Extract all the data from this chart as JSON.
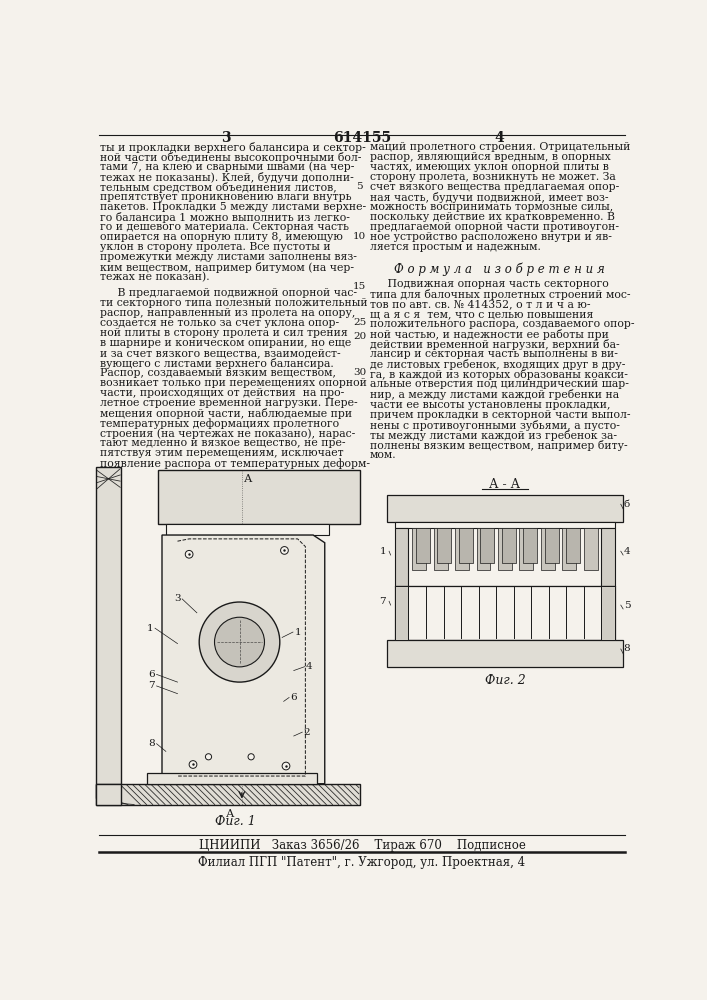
{
  "page_bg": "#f5f2ec",
  "text_color": "#1a1a1a",
  "header_number_left": "3",
  "header_center": "614155",
  "header_number_right": "4",
  "left_col_para1": [
    "ты и прокладки верхнего балансира и сектор-",
    "ной части объединены высокопрочными бол-",
    "тами 7, на клею и сварными швами (на чер-",
    "тежах не показаны). Клей, будучи дополни-",
    "тельным средством объединения листов,",
    "препятствует проникновению влаги внутрь",
    "пакетов. Прокладки 5 между листами верхне-",
    "го балансира 1 можно выполнить из легко-",
    "го и дешевого материала. Секторная часть",
    "опирается на опорную плиту 8, имеющую",
    "уклон в сторону пролета. Все пустоты и",
    "промежутки между листами заполнены вяз-",
    "ким веществом, например битумом (на чер-",
    "тежах не показан)."
  ],
  "left_col_para2": [
    "     В предлагаемой подвижной опорной час-",
    "ти секторного типа полезный положительный",
    "распор, направленный из пролета на опору,",
    "создается не только за счет уклона опор-",
    "ной плиты в сторону пролета и сил трения",
    "в шарнире и коническом опирании, но еще",
    "и за счет вязкого вещества, взаимодейст-",
    "вующего с листами верхнего балансира.",
    "Распор, создаваемый вязким веществом,",
    "возникает только при перемещениях опорной",
    "части, происходящих от действия  на про-",
    "летное строение временной нагрузки. Пере-",
    "мещения опорной части, наблюдаемые при",
    "температурных деформациях пролетного",
    "строения (на чертежах не показано), нарас-",
    "тают медленно и вязкое вещество, не пре-",
    "пятствуя этим перемещениям, исключает",
    "появление распора от температурных деформ-"
  ],
  "right_col_para1": [
    "маций пролетного строения. Отрицательный",
    "распор, являющийся вредным, в опорных",
    "частях, имеющих уклон опорной плиты в",
    "сторону пролета, возникнуть не может. За",
    "счет вязкого вещества предлагаемая опор-",
    "ная часть, будучи подвижной, имеет воз-",
    "можность воспринимать тормозные силы,",
    "поскольку действие их кратковременно. В",
    "предлагаемой опорной части противоугон-",
    "ное устройство расположено внутри и яв-",
    "ляется простым и надежным."
  ],
  "formula_title": "Ф о р м у л а   и з о б р е т е н и я",
  "formula_text": [
    "     Подвижная опорная часть секторного",
    "типа для балочных пролетных строений мос-",
    "тов по авт. св. № 414352, о т л и ч а ю-",
    "щ а я с я  тем, что с целью повышения",
    "положительного распора, создаваемого опор-",
    "ной частью, и надежности ее работы при",
    "действии временной нагрузки, верхний ба-",
    "лансир и секторная часть выполнены в ви-",
    "де листовых гребенок, входящих друг в дру-",
    "га, в каждой из которых образованы коакси-",
    "альные отверстия под цилиндрический шар-",
    "нир, а между листами каждой гребенки на",
    "части ее высоты установлены прокладки,",
    "причем прокладки в секторной части выпол-",
    "нены с противоугонными зубьями, а пусто-",
    "ты между листами каждой из гребенок за-",
    "полнены вязким веществом, например биту-",
    "мом."
  ],
  "line_numbers": [
    "5",
    "10",
    "15",
    "20",
    "25",
    "30"
  ],
  "fig1_caption": "Фиг. 1",
  "fig2_caption": "Фиг. 2",
  "section_label": "А - А",
  "footer_line1": "ЦНИИПИ   Заказ 3656/26    Тираж 670    Подписное",
  "footer_line2": "Филиал ПГП \"Патент\", г. Ужгород, ул. Проектная, 4"
}
